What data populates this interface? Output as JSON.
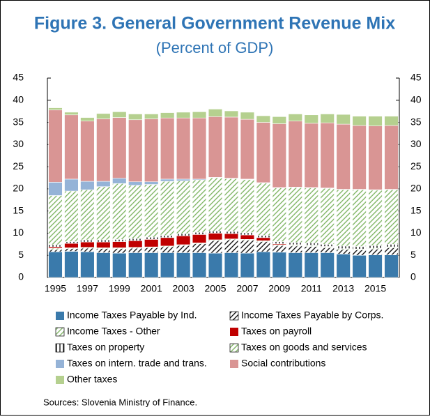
{
  "chart_data": {
    "type": "stacked-bar",
    "title": "Figure 3. General Government Revenue Mix",
    "subtitle": "(Percent of GDP)",
    "source": "Sources: Slovenia Ministry of Finance.",
    "categories": [
      "1995",
      null,
      "1997",
      null,
      "1999",
      null,
      "2001",
      null,
      "2003",
      null,
      "2005",
      null,
      "2007",
      null,
      "2009",
      null,
      "2011",
      null,
      "2013",
      null,
      "2015",
      null
    ],
    "series": [
      {
        "name": "Income Taxes Payable by Ind.",
        "color": "#3a7aab",
        "pattern": "solid",
        "values": [
          5.8,
          5.9,
          5.8,
          5.6,
          5.5,
          5.6,
          5.6,
          5.6,
          5.6,
          5.6,
          5.5,
          5.6,
          5.5,
          5.8,
          5.7,
          5.6,
          5.6,
          5.6,
          5.3,
          5.0,
          5.1,
          5.1
        ]
      },
      {
        "name": "Income Taxes Payable by Corps.",
        "color": "#000000",
        "pattern": "hatch",
        "values": [
          0.5,
          0.6,
          0.8,
          0.9,
          1.0,
          1.0,
          1.1,
          1.3,
          1.6,
          2.0,
          2.8,
          2.9,
          2.9,
          2.3,
          1.5,
          1.5,
          1.4,
          1.1,
          1.0,
          1.2,
          1.3,
          1.6
        ]
      },
      {
        "name": "Income Taxes - Other",
        "color": "#77b05a",
        "pattern": "hatch",
        "values": [
          0.3,
          0.2,
          0.2,
          0.2,
          0.2,
          0.2,
          0.2,
          0.2,
          0.2,
          0.2,
          0.2,
          0.2,
          0.2,
          0.2,
          0.2,
          0.2,
          0.2,
          0.2,
          0.2,
          0.2,
          0.2,
          0.2
        ]
      },
      {
        "name": "Taxes on payroll",
        "color": "#c00000",
        "pattern": "solid",
        "values": [
          0.3,
          1.0,
          1.2,
          1.3,
          1.4,
          1.5,
          1.7,
          1.9,
          2.0,
          1.9,
          1.5,
          1.2,
          1.0,
          0.7,
          0.2,
          0.1,
          0.1,
          0.1,
          0,
          0,
          0,
          0
        ]
      },
      {
        "name": "Taxes on property",
        "color": "#000000",
        "pattern": "vertical",
        "values": [
          0.5,
          0.4,
          0.5,
          0.5,
          0.5,
          0.5,
          0.5,
          0.5,
          0.5,
          0.5,
          0.5,
          0.5,
          0.5,
          0.5,
          0.5,
          0.5,
          0.5,
          0.5,
          0.6,
          0.6,
          0.6,
          0.6
        ]
      },
      {
        "name": "Taxes on goods and services",
        "color": "#77b05a",
        "pattern": "hatch",
        "values": [
          11.1,
          11.4,
          11.3,
          12.0,
          12.6,
          12.0,
          11.9,
          12.2,
          11.9,
          11.8,
          12.0,
          11.9,
          12.0,
          11.8,
          12.1,
          12.4,
          12.4,
          12.6,
          12.7,
          12.8,
          12.5,
          12.3
        ]
      },
      {
        "name": "Taxes on intern. trade and trans.",
        "color": "#95b3d7",
        "pattern": "solid",
        "values": [
          3.0,
          2.7,
          1.9,
          1.2,
          1.2,
          0.8,
          0.6,
          0.5,
          0.4,
          0.2,
          0.1,
          0.1,
          0.1,
          0.1,
          0.1,
          0.1,
          0.1,
          0.1,
          0.1,
          0.1,
          0.1,
          0.1
        ]
      },
      {
        "name": "Social contributions",
        "color": "#d99594",
        "pattern": "solid",
        "values": [
          16.3,
          14.5,
          13.6,
          14.1,
          13.7,
          14.0,
          14.2,
          13.8,
          13.8,
          13.8,
          13.7,
          13.8,
          13.5,
          13.6,
          14.4,
          14.9,
          14.5,
          14.7,
          14.7,
          14.4,
          14.4,
          14.4
        ]
      },
      {
        "name": "Other taxes",
        "color": "#b5d08f",
        "pattern": "solid",
        "values": [
          0.5,
          0.6,
          0.8,
          1.2,
          1.3,
          1.3,
          1.1,
          1.2,
          1.3,
          1.4,
          1.7,
          1.4,
          1.6,
          1.5,
          1.6,
          1.6,
          1.9,
          2.0,
          2.2,
          2.1,
          2.2,
          2.1
        ]
      }
    ],
    "ylim": [
      0,
      45
    ],
    "yticks": [
      0,
      5,
      10,
      15,
      20,
      25,
      30,
      35,
      40,
      45
    ],
    "y2lim": [
      0,
      45
    ],
    "y2ticks": [
      0,
      5,
      10,
      15,
      20,
      25,
      30,
      35,
      40,
      45
    ],
    "grid": false
  }
}
